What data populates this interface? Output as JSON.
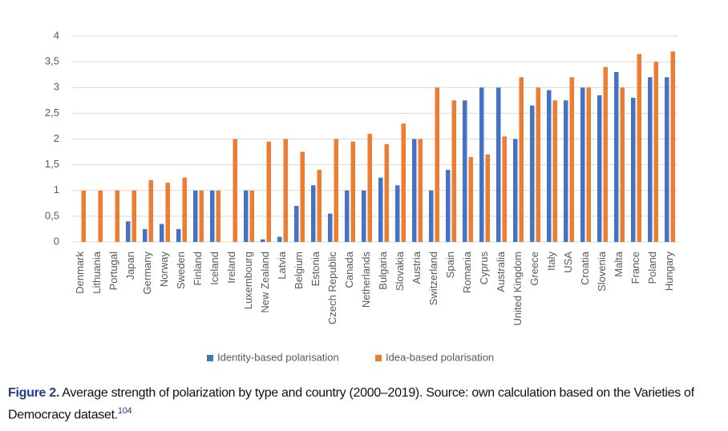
{
  "chart_data": {
    "type": "bar",
    "categories": [
      "Denmark",
      "Lithuania",
      "Portugal",
      "Japan",
      "Germany",
      "Norway",
      "Sweden",
      "Finland",
      "Iceland",
      "Ireland",
      "Luxembourg",
      "New Zealand",
      "Latvia",
      "Belgium",
      "Estonia",
      "Czech Republic",
      "Canada",
      "Netherlands",
      "Bulgaria",
      "Slovakia",
      "Austria",
      "Switzerland",
      "Spain",
      "Romania",
      "Cyprus",
      "Australia",
      "United Kingdom",
      "Greece",
      "Italy",
      "USA",
      "Croatia",
      "Slovenia",
      "Malta",
      "France",
      "Poland",
      "Hungary"
    ],
    "series": [
      {
        "name": "Identity-based polarisation",
        "color": "#4472c4",
        "values": [
          0,
          0,
          0,
          0.4,
          0.25,
          0.35,
          0.25,
          1,
          1,
          0,
          1,
          0.05,
          0.1,
          0.7,
          1.1,
          0.55,
          1,
          1,
          1.25,
          1.1,
          2,
          1,
          1.4,
          2.75,
          3,
          3,
          2,
          2.65,
          2.95,
          2.75,
          3,
          2.85,
          3.3,
          2.8,
          3.2,
          3.2
        ]
      },
      {
        "name": "Idea-based polarisation",
        "color": "#ed7d31",
        "values": [
          1,
          1,
          1,
          1,
          1.2,
          1.15,
          1.25,
          1,
          1,
          2,
          1,
          1.95,
          2,
          1.75,
          1.4,
          2,
          1.95,
          2.1,
          1.9,
          2.3,
          2,
          3,
          2.75,
          1.65,
          1.7,
          2.05,
          3.2,
          3,
          2.75,
          3.2,
          3,
          3.4,
          3,
          3.65,
          3.5,
          3.7
        ]
      }
    ],
    "ylim": [
      0,
      4
    ],
    "yticks": [
      0,
      {
        "value": 0.5,
        "label": "0,5"
      },
      1,
      {
        "value": 1.5,
        "label": "1,5"
      },
      2,
      {
        "value": 2.5,
        "label": "2,5"
      },
      3,
      {
        "value": 3.5,
        "label": "3,5"
      },
      4
    ],
    "grid": true,
    "legend": "bottom"
  },
  "caption": {
    "label": "Figure 2.",
    "text": "Average strength of polarization by type and country (2000–2019). Source: own calculation based on the Varieties of Democracy dataset.",
    "note": "104"
  }
}
